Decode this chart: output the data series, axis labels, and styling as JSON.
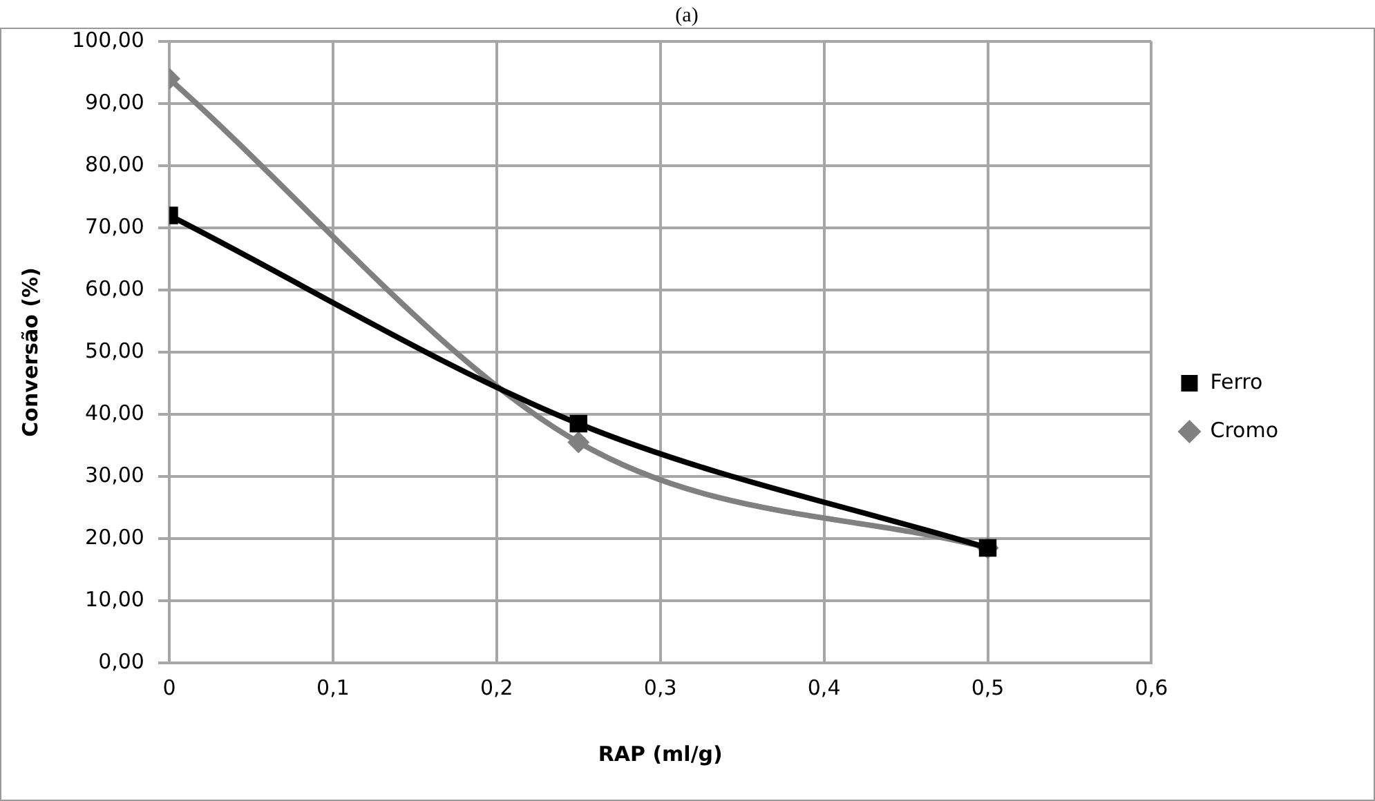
{
  "chart_data": {
    "type": "line",
    "title": "(a)",
    "xlabel": "RAP (ml/g)",
    "ylabel": "Conversão (%)",
    "x": [
      0,
      0.25,
      0.5
    ],
    "series": [
      {
        "name": "Cromo",
        "color": "#808080",
        "values": [
          94,
          35.5,
          18.5
        ],
        "marker": "diamond"
      },
      {
        "name": "Ferro",
        "color": "#000000",
        "values": [
          72,
          38.5,
          18.5
        ],
        "marker": "square"
      }
    ],
    "xlim": [
      0,
      0.6
    ],
    "xticks": [
      {
        "value": 0,
        "label": "0"
      },
      {
        "value": 0.1,
        "label": "0,1"
      },
      {
        "value": 0.2,
        "label": "0,2"
      },
      {
        "value": 0.3,
        "label": "0,3"
      },
      {
        "value": 0.4,
        "label": "0,4"
      },
      {
        "value": 0.5,
        "label": "0,5"
      },
      {
        "value": 0.6,
        "label": "0,6"
      }
    ],
    "ylim": [
      0,
      100
    ],
    "yticks": [
      {
        "value": 0,
        "label": "0,00"
      },
      {
        "value": 10,
        "label": "10,00"
      },
      {
        "value": 20,
        "label": "20,00"
      },
      {
        "value": 30,
        "label": "30,00"
      },
      {
        "value": 40,
        "label": "40,00"
      },
      {
        "value": 50,
        "label": "50,00"
      },
      {
        "value": 60,
        "label": "60,00"
      },
      {
        "value": 70,
        "label": "70,00"
      },
      {
        "value": 80,
        "label": "80,00"
      },
      {
        "value": 90,
        "label": "90,00"
      },
      {
        "value": 100,
        "label": "100,00"
      }
    ],
    "grid": true,
    "legend": "right",
    "line_style": "solid"
  }
}
